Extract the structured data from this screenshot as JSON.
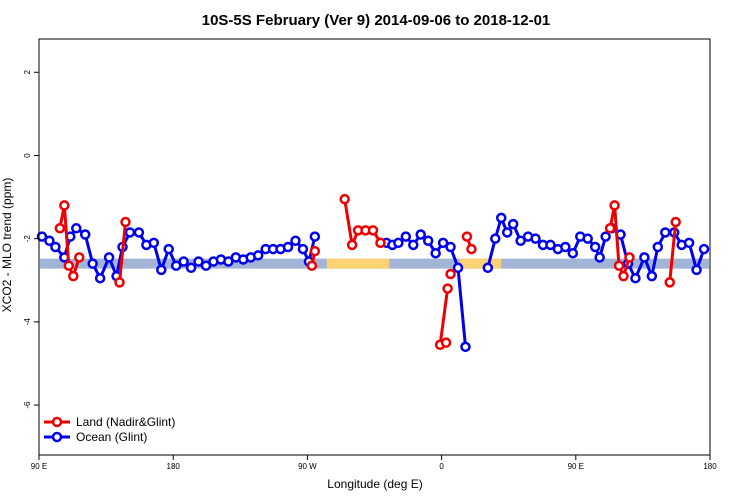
{
  "chart_data": {
    "type": "line",
    "title": "10S-5S February (Ver 9)   2014-09-06 to 2018-12-01",
    "xlabel": "Longitude (deg E)",
    "ylabel": "XCO2 - MLO trend (ppm)",
    "xlim": [
      90,
      540
    ],
    "ylim": [
      -7.2,
      2.8
    ],
    "x_ticks": [
      {
        "value": 90,
        "label": "90 E"
      },
      {
        "value": 180,
        "label": "180"
      },
      {
        "value": 270,
        "label": "90 W"
      },
      {
        "value": 360,
        "label": "0"
      },
      {
        "value": 450,
        "label": "90 E"
      },
      {
        "value": 540,
        "label": "180"
      }
    ],
    "y_ticks": [
      {
        "value": 2,
        "label": "2"
      },
      {
        "value": 0,
        "label": "0"
      },
      {
        "value": -2,
        "label": "-2"
      },
      {
        "value": -4,
        "label": "-4"
      },
      {
        "value": -6,
        "label": "-6"
      }
    ],
    "grid": false,
    "legend": {
      "position": "bottom-left"
    },
    "surface_bar": {
      "y": -2.6,
      "base_color": "#a3b5d6",
      "land_color": "#fbd373",
      "land_segments": [
        [
          283,
          325
        ],
        [
          372,
          400
        ]
      ]
    },
    "series": [
      {
        "name": "Land (Nadir&Glint)",
        "color": "#ee0000",
        "segments": [
          [
            [
              104,
              -1.75
            ],
            [
              107,
              -1.2
            ],
            [
              110,
              -2.65
            ],
            [
              113,
              -2.9
            ],
            [
              117,
              -2.45
            ]
          ],
          [
            [
              144,
              -3.05
            ],
            [
              148,
              -1.6
            ]
          ],
          [
            [
              273,
              -2.65
            ],
            [
              275,
              -2.3
            ]
          ],
          [
            [
              295,
              -1.05
            ],
            [
              300,
              -2.15
            ],
            [
              304,
              -1.8
            ],
            [
              309,
              -1.8
            ],
            [
              314,
              -1.8
            ],
            [
              319,
              -2.1
            ]
          ],
          [
            [
              377,
              -1.95
            ],
            [
              380,
              -2.25
            ]
          ],
          [
            [
              473,
              -1.75
            ],
            [
              476,
              -1.2
            ],
            [
              479,
              -2.65
            ],
            [
              482,
              -2.9
            ],
            [
              486,
              -2.45
            ]
          ],
          [
            [
              513,
              -3.05
            ],
            [
              517,
              -1.6
            ]
          ],
          [
            [
              364,
              -3.2
            ],
            [
              359,
              -4.55
            ],
            [
              363,
              -4.5
            ]
          ],
          [
            [
              366,
              -2.85
            ]
          ]
        ]
      },
      {
        "name": "Ocean (Glint)",
        "color": "#0000ee",
        "segments": [
          [
            [
              92,
              -1.95
            ],
            [
              97,
              -2.05
            ],
            [
              101,
              -2.2
            ],
            [
              107,
              -2.45
            ],
            [
              111,
              -1.95
            ],
            [
              115,
              -1.75
            ],
            [
              121,
              -1.9
            ],
            [
              126,
              -2.6
            ],
            [
              131,
              -2.95
            ],
            [
              137,
              -2.45
            ],
            [
              142,
              -2.9
            ],
            [
              146,
              -2.2
            ],
            [
              151,
              -1.85
            ],
            [
              157,
              -1.85
            ],
            [
              162,
              -2.15
            ],
            [
              167,
              -2.1
            ],
            [
              172,
              -2.75
            ],
            [
              177,
              -2.25
            ],
            [
              182,
              -2.65
            ],
            [
              187,
              -2.55
            ],
            [
              192,
              -2.7
            ],
            [
              197,
              -2.55
            ],
            [
              202,
              -2.65
            ],
            [
              207,
              -2.55
            ],
            [
              212,
              -2.5
            ],
            [
              217,
              -2.55
            ],
            [
              222,
              -2.45
            ],
            [
              227,
              -2.5
            ],
            [
              232,
              -2.45
            ],
            [
              237,
              -2.4
            ],
            [
              242,
              -2.25
            ],
            [
              247,
              -2.25
            ],
            [
              252,
              -2.25
            ],
            [
              257,
              -2.2
            ],
            [
              262,
              -2.05
            ],
            [
              267,
              -2.25
            ],
            [
              271,
              -2.55
            ],
            [
              275,
              -1.95
            ]
          ],
          [
            [
              323,
              -2.1
            ],
            [
              327,
              -2.15
            ],
            [
              331,
              -2.1
            ],
            [
              336,
              -1.95
            ],
            [
              341,
              -2.15
            ],
            [
              346,
              -1.9
            ],
            [
              351,
              -2.05
            ],
            [
              356,
              -2.35
            ],
            [
              361,
              -2.1
            ],
            [
              366,
              -2.2
            ],
            [
              371,
              -2.7
            ],
            [
              376,
              -4.6
            ]
          ],
          [
            [
              391,
              -2.7
            ],
            [
              396,
              -2.0
            ],
            [
              400,
              -1.5
            ],
            [
              404,
              -1.85
            ],
            [
              408,
              -1.65
            ],
            [
              413,
              -2.05
            ],
            [
              418,
              -1.95
            ],
            [
              423,
              -2.0
            ],
            [
              428,
              -2.15
            ],
            [
              433,
              -2.15
            ],
            [
              438,
              -2.25
            ],
            [
              443,
              -2.2
            ],
            [
              448,
              -2.35
            ],
            [
              453,
              -1.95
            ],
            [
              458,
              -2.0
            ],
            [
              463,
              -2.2
            ],
            [
              466,
              -2.45
            ],
            [
              470,
              -1.95
            ],
            [
              474,
              -1.75
            ],
            [
              480,
              -1.9
            ],
            [
              485,
              -2.6
            ],
            [
              490,
              -2.95
            ],
            [
              496,
              -2.45
            ],
            [
              501,
              -2.9
            ],
            [
              505,
              -2.2
            ],
            [
              510,
              -1.85
            ],
            [
              516,
              -1.85
            ],
            [
              521,
              -2.15
            ],
            [
              526,
              -2.1
            ],
            [
              531,
              -2.75
            ],
            [
              536,
              -2.25
            ]
          ]
        ]
      }
    ]
  }
}
